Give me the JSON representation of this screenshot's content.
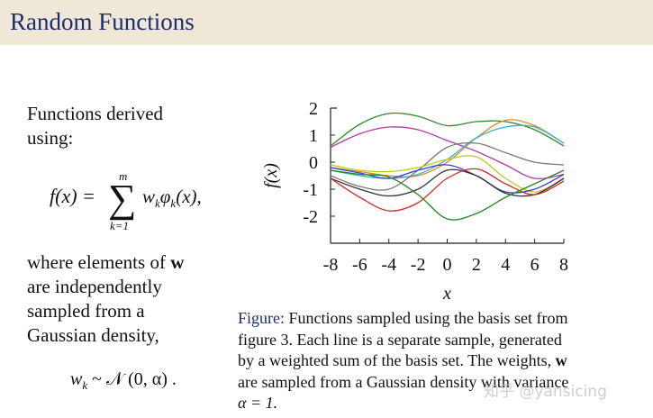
{
  "title": "Random Functions",
  "left_text": {
    "line1": "Functions derived",
    "line2": "using:",
    "desc1_pre": "where elements of ",
    "desc1_bold": "w",
    "desc2": "are independently",
    "desc3": "sampled from a",
    "desc4": "Gaussian density,"
  },
  "equation1": {
    "lhs": "f(x) =",
    "sum_top": "m",
    "sum_bottom": "k=1",
    "term": "w",
    "term_sub": "k",
    "phi": "φ",
    "phi_sub": "k",
    "term_tail": "(x),"
  },
  "equation2": {
    "lhs": "w",
    "lhs_sub": "k",
    "rhs": " ~ 𝒩 (0, α) ."
  },
  "caption": {
    "label": "Figure:",
    "line1": " Functions sampled using the basis set from",
    "line2": "figure 3. Each line is a separate sample, generated",
    "line3_pre": "by a weighted sum of the basis set. The weights, ",
    "line3_bold": "w",
    "line4": "are sampled from a Gaussian density with variance",
    "line5": "α = 1."
  },
  "watermark": "知乎 @yansicing",
  "chart_data": {
    "type": "line",
    "title": "",
    "xlabel": "x",
    "ylabel": "f(x)",
    "xlim": [
      -8,
      8
    ],
    "ylim": [
      -3,
      2
    ],
    "x_ticks": [
      -8,
      -6,
      -4,
      -2,
      0,
      2,
      4,
      6,
      8
    ],
    "y_ticks": [
      2,
      1,
      0,
      -1,
      -2
    ],
    "grid": false,
    "series": [
      {
        "color": "#2e8b2e",
        "points": [
          [
            -8,
            0.6
          ],
          [
            -6,
            1.4
          ],
          [
            -4,
            1.8
          ],
          [
            -2,
            1.7
          ],
          [
            0,
            1.35
          ],
          [
            2,
            1.5
          ],
          [
            4,
            1.5
          ],
          [
            6,
            1.2
          ],
          [
            8,
            0.6
          ]
        ]
      },
      {
        "color": "#b23aa8",
        "points": [
          [
            -8,
            0.55
          ],
          [
            -6,
            1.05
          ],
          [
            -4,
            1.3
          ],
          [
            -2,
            1.2
          ],
          [
            0,
            0.8
          ],
          [
            2,
            0.4
          ],
          [
            4,
            -0.1
          ],
          [
            6,
            -0.6
          ],
          [
            8,
            -0.45
          ]
        ]
      },
      {
        "color": "#e08a1e",
        "points": [
          [
            -8,
            -0.2
          ],
          [
            -6,
            -0.35
          ],
          [
            -4,
            -0.5
          ],
          [
            -2,
            -0.5
          ],
          [
            0,
            0.0
          ],
          [
            2,
            0.9
          ],
          [
            4,
            1.55
          ],
          [
            6,
            1.35
          ],
          [
            8,
            0.7
          ]
        ]
      },
      {
        "color": "#36b0d6",
        "points": [
          [
            -8,
            -0.3
          ],
          [
            -6,
            -0.5
          ],
          [
            -4,
            -0.6
          ],
          [
            -2,
            -0.45
          ],
          [
            0,
            0.1
          ],
          [
            2,
            0.9
          ],
          [
            4,
            1.3
          ],
          [
            6,
            1.3
          ],
          [
            8,
            0.7
          ]
        ]
      },
      {
        "color": "#777777",
        "points": [
          [
            -8,
            -0.5
          ],
          [
            -6,
            -0.9
          ],
          [
            -4,
            -1.0
          ],
          [
            -2,
            -0.3
          ],
          [
            0,
            0.55
          ],
          [
            2,
            0.7
          ],
          [
            4,
            0.35
          ],
          [
            6,
            0.0
          ],
          [
            8,
            -0.1
          ]
        ]
      },
      {
        "color": "#b8cc1e",
        "points": [
          [
            -8,
            -0.1
          ],
          [
            -6,
            -0.3
          ],
          [
            -4,
            -0.35
          ],
          [
            -2,
            -0.2
          ],
          [
            0,
            0.1
          ],
          [
            2,
            0.2
          ],
          [
            4,
            -0.6
          ],
          [
            6,
            -1.1
          ],
          [
            8,
            -0.6
          ]
        ]
      },
      {
        "color": "#3b3bd6",
        "points": [
          [
            -8,
            -0.2
          ],
          [
            -6,
            -0.4
          ],
          [
            -4,
            -0.6
          ],
          [
            -2,
            -0.3
          ],
          [
            0,
            -0.1
          ],
          [
            2,
            -0.5
          ],
          [
            4,
            -1.1
          ],
          [
            6,
            -1.0
          ],
          [
            8,
            -0.45
          ]
        ]
      },
      {
        "color": "#333333",
        "points": [
          [
            -8,
            -0.6
          ],
          [
            -6,
            -1.0
          ],
          [
            -4,
            -1.25
          ],
          [
            -2,
            -1.0
          ],
          [
            0,
            -0.3
          ],
          [
            2,
            -0.5
          ],
          [
            4,
            -1.15
          ],
          [
            6,
            -1.2
          ],
          [
            8,
            -0.6
          ]
        ]
      },
      {
        "color": "#d62828",
        "points": [
          [
            -8,
            -0.6
          ],
          [
            -6,
            -1.3
          ],
          [
            -4,
            -1.8
          ],
          [
            -2,
            -1.5
          ],
          [
            0,
            -0.6
          ],
          [
            2,
            -0.25
          ],
          [
            4,
            -0.8
          ],
          [
            6,
            -1.2
          ],
          [
            8,
            -0.7
          ]
        ]
      },
      {
        "color": "#1e8a1e",
        "points": [
          [
            -8,
            -0.3
          ],
          [
            -6,
            -0.45
          ],
          [
            -4,
            -0.55
          ],
          [
            -2,
            -1.2
          ],
          [
            0,
            -2.1
          ],
          [
            2,
            -1.9
          ],
          [
            4,
            -1.3
          ],
          [
            6,
            -0.8
          ],
          [
            8,
            -0.3
          ]
        ]
      }
    ]
  }
}
